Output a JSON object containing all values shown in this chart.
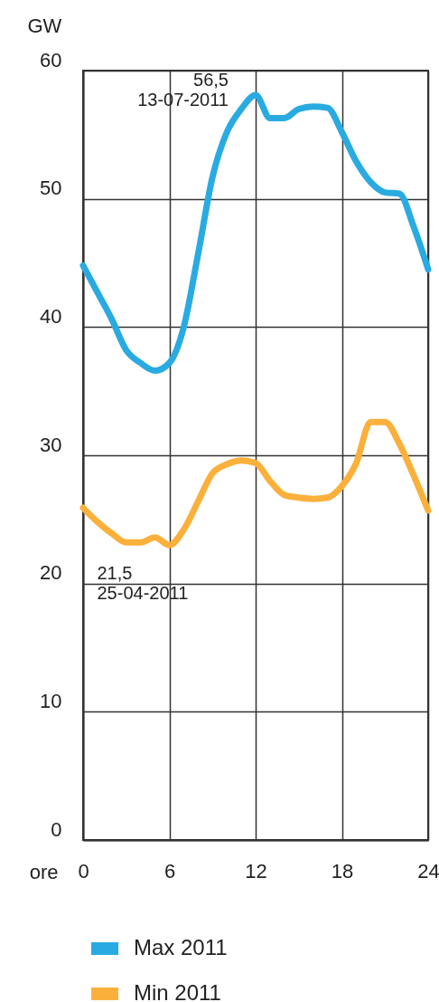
{
  "chart_data": {
    "type": "line",
    "ylabel": "GW",
    "xlabel": "ore",
    "x": [
      0,
      1,
      2,
      3,
      4,
      5,
      6,
      7,
      8,
      9,
      10,
      11,
      12,
      13,
      14,
      15,
      16,
      17,
      18,
      19,
      20,
      21,
      22,
      23,
      24
    ],
    "series": [
      {
        "name": "Max 2011",
        "color": "#29abe2",
        "values": [
          44.8,
          42.7,
          40.6,
          38.2,
          37.2,
          36.6,
          37.2,
          40.0,
          45.7,
          51.7,
          55.2,
          57.0,
          58.1,
          56.3,
          56.3,
          57.0,
          57.2,
          57.1,
          55.2,
          52.9,
          51.3,
          50.5,
          50.4,
          47.8,
          44.5
        ]
      },
      {
        "name": "Min 2011",
        "color": "#fbb03b",
        "values": [
          25.9,
          24.8,
          23.9,
          23.2,
          23.2,
          23.6,
          23.0,
          24.2,
          26.4,
          28.6,
          29.3,
          29.6,
          29.4,
          28.0,
          26.9,
          26.7,
          26.6,
          26.7,
          27.6,
          29.4,
          32.6,
          32.6,
          30.9,
          28.4,
          25.7
        ]
      }
    ],
    "annotations": [
      {
        "text": "56,5\n13-07-2011",
        "x": 12,
        "y": 58.1
      },
      {
        "text": "21,5\n25-04-2011",
        "x": 6,
        "y": 23.0
      }
    ],
    "xlim": [
      0,
      24
    ],
    "xticks": [
      0,
      6,
      12,
      18,
      24
    ],
    "ylim": [
      0,
      60
    ],
    "yticks": [
      0,
      10,
      20,
      30,
      40,
      50,
      60
    ],
    "grid": true,
    "legend": "bottom",
    "line_style": "solid",
    "marker": "none"
  }
}
